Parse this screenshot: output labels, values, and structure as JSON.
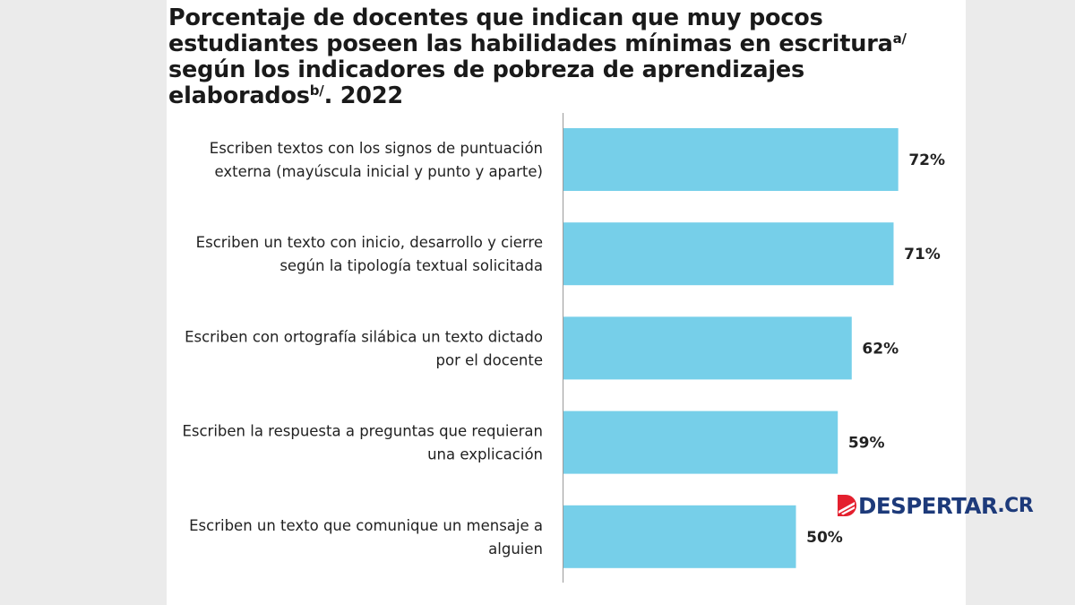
{
  "chart_data": {
    "type": "bar",
    "orientation": "horizontal",
    "title_parts": {
      "text1": "Porcentaje de docentes que indican que muy pocos estudiantes poseen las habilidades mínimas en escritura",
      "sup1": "a/",
      "text2": " según los indicadores de pobreza de aprendizajes elaborados",
      "sup2": "b/",
      "text3": ". 2022"
    },
    "categories": [
      [
        "Escriben textos con los signos de puntuación",
        "externa (mayúscula inicial y punto y aparte)"
      ],
      [
        "Escriben un texto con inicio, desarrollo y cierre",
        "según la tipología textual solicitada"
      ],
      [
        "Escriben con ortografía silábica un texto dictado",
        "por el docente"
      ],
      [
        "Escriben la respuesta a preguntas que requieran",
        "una explicación"
      ],
      [
        "Escriben un texto que comunique un mensaje a",
        "alguien"
      ]
    ],
    "values": [
      72,
      71,
      62,
      59,
      50
    ],
    "value_labels": [
      "72%",
      "71%",
      "62%",
      "59%",
      "50%"
    ],
    "bar_color": "#76cfe9",
    "axis_color": "#9a9a9a",
    "grid": false,
    "legend": "none"
  },
  "watermark": {
    "text": "DESPERTAR",
    "suffix": ".CR",
    "color_blue": "#1d3a7a",
    "color_red": "#e4202e"
  }
}
